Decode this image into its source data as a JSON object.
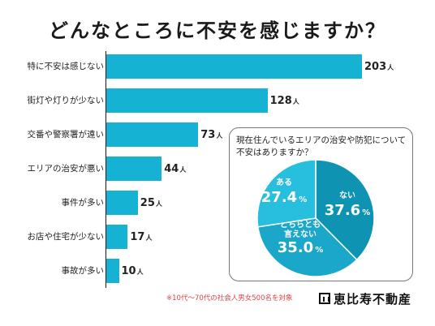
{
  "title": "どんなところに不安を感じますか？",
  "chart_data": [
    {
      "type": "bar",
      "orientation": "horizontal",
      "categories": [
        "特に不安は感じない",
        "街灯や灯りが少ない",
        "交番や警察署が遠い",
        "エリアの治安が悪い",
        "事件が多い",
        "お店や住宅が少ない",
        "事故が多い"
      ],
      "values": [
        203,
        128,
        73,
        44,
        25,
        17,
        10
      ],
      "unit": "人",
      "bar_color": "#16b2d3",
      "grid": false
    },
    {
      "type": "pie",
      "title": "現在住んでいるエリアの治安や防犯について不安はありますか？",
      "slices": [
        {
          "label": "ない",
          "value": 37.6,
          "color": "#0e94b2"
        },
        {
          "label": "どちらとも言えない",
          "value": 35.0,
          "color": "#1aa7ca"
        },
        {
          "label": "ある",
          "value": 27.4,
          "color": "#28bfdf"
        }
      ],
      "unit": "%"
    }
  ],
  "footnote": "※10代〜70代の社会人男女500名を対象",
  "logo_text": "恵比寿不動産",
  "colors": {
    "bar": "#16b2d3",
    "footnote": "#dd4444"
  }
}
